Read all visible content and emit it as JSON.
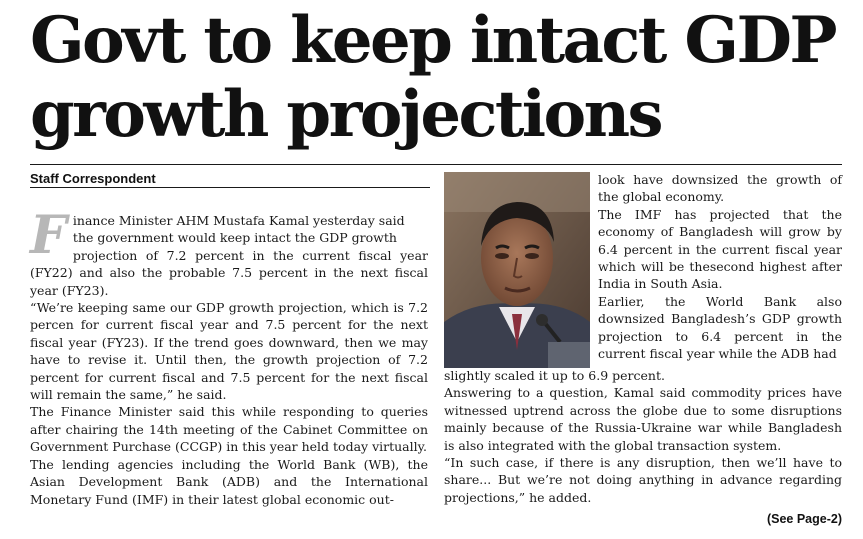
{
  "headline": {
    "line1": "Govt to keep intact GDP",
    "line2": "growth projections"
  },
  "byline": "Staff Correspondent",
  "left_column": {
    "dropcap": "F",
    "p1_line1": "inance Minister AHM Mustafa Kamal yesterday said",
    "p1_line2": "the government would keep intact the GDP growth",
    "p1_line3": "projection of 7.2 percent in the current fiscal year",
    "p1_rest": "(FY22) and also the probable 7.5 percent in the next fiscal year (FY23).",
    "p2": "“We’re keeping same our GDP growth projection, which is 7.2 percen for current fiscal year and 7.5 percent for the next fiscal year (FY23). If the trend goes downward, then we may have to revise it. Until then, the growth projection of 7.2 percent for current fiscal and 7.5 percent for the next fiscal will remain the same,” he said.",
    "p3": "The Finance Minister said this while responding to queries after chairing the 14th meeting of the Cabinet Committee on Government Purchase (CCGP) in this year held today virtually.",
    "p4": "The lending agencies including the World Bank (WB), the Asian Development Bank (ADB) and the International Monetary Fund (IMF) in their latest global economic out-"
  },
  "right_column": {
    "p1": "look have downsized the growth of the global economy.",
    "p2": "The IMF has projected that the economy of Bangladesh will grow by 6.4 percent in the current fiscal year which will be thesecond highest after India in South Asia.",
    "p3": "Earlier, the World Bank also downsized Bangladesh’s GDP growth projection to 6.4 percent in the current fiscal year while the ADB had"
  },
  "wide_column": {
    "p1": "slightly scaled it up to 6.9 percent.",
    "p2": "Answering to a question, Kamal said commodity prices have witnessed uptrend across the globe due to some disruptions mainly because of the Russia-Ukraine war while Bangladesh is also integrated with the global transaction system.",
    "p3": "“In such case, if there is any disruption, then we’ll have to share... But we’re not doing anything in advance regarding projections,” he added."
  },
  "see_page": "(See Page-2)"
}
